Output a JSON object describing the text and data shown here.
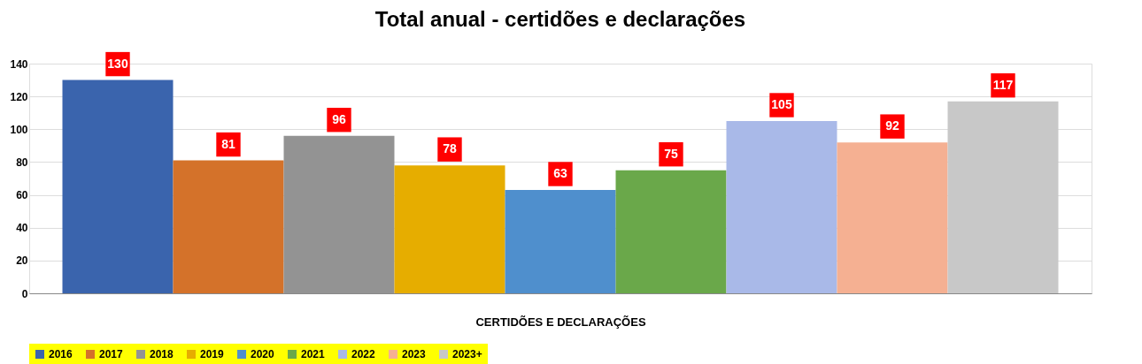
{
  "chart_data": {
    "type": "bar",
    "title": "Total anual - certidões e declarações",
    "xlabel": "CERTIDÕES E DECLARAÇÕES",
    "categories": [
      null
    ],
    "series": [
      {
        "name": "2016",
        "color": "#3a64ad",
        "values": [
          130
        ]
      },
      {
        "name": "2017",
        "color": "#d4722a",
        "values": [
          81
        ]
      },
      {
        "name": "2018",
        "color": "#939393",
        "values": [
          96
        ]
      },
      {
        "name": "2019",
        "color": "#e6ad00",
        "values": [
          78
        ]
      },
      {
        "name": "2020",
        "color": "#4f8fcd",
        "values": [
          63
        ]
      },
      {
        "name": "2021",
        "color": "#6aa84a",
        "values": [
          75
        ]
      },
      {
        "name": "2022",
        "color": "#a9b9e8",
        "values": [
          105
        ]
      },
      {
        "name": "2023",
        "color": "#f5b092",
        "values": [
          92
        ]
      },
      {
        "name": "2023+",
        "color": "#c8c8c8",
        "values": [
          117
        ]
      }
    ],
    "ylim": [
      0,
      140
    ],
    "yticks": [
      0,
      20,
      40,
      60,
      80,
      100,
      120,
      140
    ],
    "grid": "y",
    "legend": "bottom",
    "data_labels": true
  }
}
